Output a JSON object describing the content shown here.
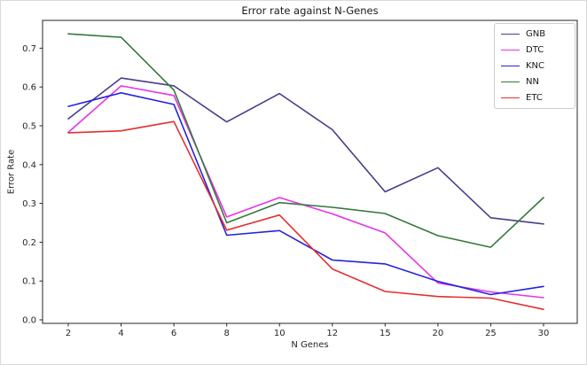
{
  "figure": {
    "background": "#ffffff",
    "axes_color": "#262626"
  },
  "chart_data": {
    "type": "line",
    "title": "Error rate against N-Genes",
    "xlabel": "N Genes",
    "ylabel": "Error Rate",
    "x_tick_labels": [
      "2",
      "4",
      "6",
      "8",
      "10",
      "12",
      "15",
      "20",
      "25",
      "30"
    ],
    "y_tick_labels": [
      "0.0",
      "0.1",
      "0.2",
      "0.3",
      "0.4",
      "0.5",
      "0.6",
      "0.7"
    ],
    "ylim": [
      -0.01,
      0.772
    ],
    "grid": false,
    "legend_position": "upper right",
    "series": [
      {
        "name": "GNB",
        "color": "#483d8b",
        "values": [
          0.518,
          0.623,
          0.603,
          0.51,
          0.583,
          0.49,
          0.33,
          0.392,
          0.263,
          0.247
        ]
      },
      {
        "name": "DTC",
        "color": "#e832e8",
        "values": [
          0.483,
          0.603,
          0.578,
          0.265,
          0.315,
          0.273,
          0.224,
          0.095,
          0.072,
          0.057
        ]
      },
      {
        "name": "KNC",
        "color": "#2424dd",
        "values": [
          0.55,
          0.585,
          0.555,
          0.218,
          0.23,
          0.154,
          0.144,
          0.099,
          0.065,
          0.086
        ]
      },
      {
        "name": "NN",
        "color": "#35793b",
        "values": [
          0.737,
          0.728,
          0.592,
          0.25,
          0.302,
          0.29,
          0.274,
          0.217,
          0.187,
          0.315
        ]
      },
      {
        "name": "ETC",
        "color": "#e62e2e",
        "values": [
          0.482,
          0.487,
          0.511,
          0.231,
          0.27,
          0.131,
          0.073,
          0.06,
          0.056,
          0.027
        ]
      }
    ]
  }
}
